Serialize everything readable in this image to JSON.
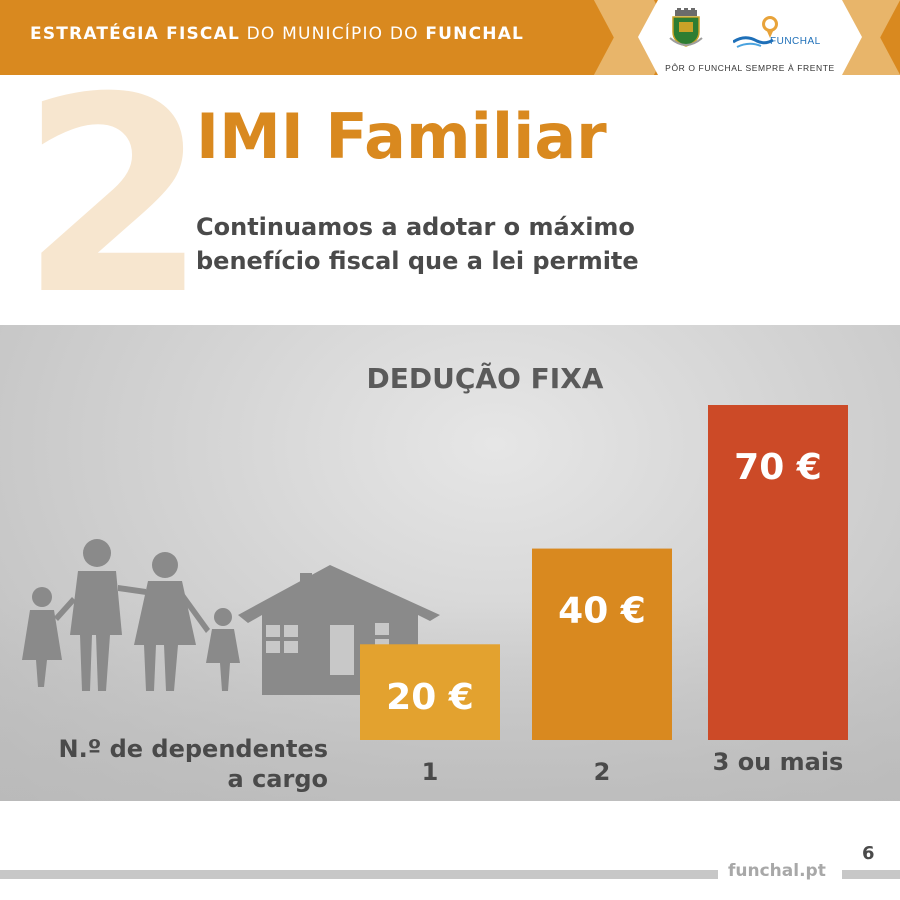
{
  "header": {
    "title_bold_1": "ESTRATÉGIA FISCAL",
    "title_light": "DO MUNICÍPIO DO",
    "title_bold_2": "FUNCHAL",
    "brand_text": "FUNCHAL",
    "tagline": "PÔR O FUNCHAL SEMPRE À FRENTE",
    "crest_label": "CÂMARA DO FUNCHAL"
  },
  "section_number": "2",
  "title": "IMI Familiar",
  "subtitle_lines": [
    "Continuamos a adotar o máximo",
    "benefício fiscal que a lei permite"
  ],
  "axis_label_lines": [
    "N.º de dependentes",
    "a cargo"
  ],
  "chart_data": {
    "type": "bar",
    "title": "DEDUÇÃO FIXA",
    "xlabel": "N.º de dependentes a cargo",
    "ylabel": "",
    "categories": [
      "1",
      "2",
      "3 ou mais"
    ],
    "values": [
      20,
      40,
      70
    ],
    "data_labels": [
      "20 €",
      "40 €",
      "70 €"
    ],
    "ylim": [
      0,
      70
    ],
    "colors": [
      "#e3a22f",
      "#d9891f",
      "#cc4a27"
    ],
    "grid": false,
    "legend": "none"
  },
  "colors": {
    "accent": "#d9891f",
    "accent_light": "#f7e6cf",
    "text_dark": "#4a4a4a",
    "brand_blue": "#1e6fb8"
  },
  "footer": {
    "url": "funchal.pt",
    "page_number": "6"
  }
}
